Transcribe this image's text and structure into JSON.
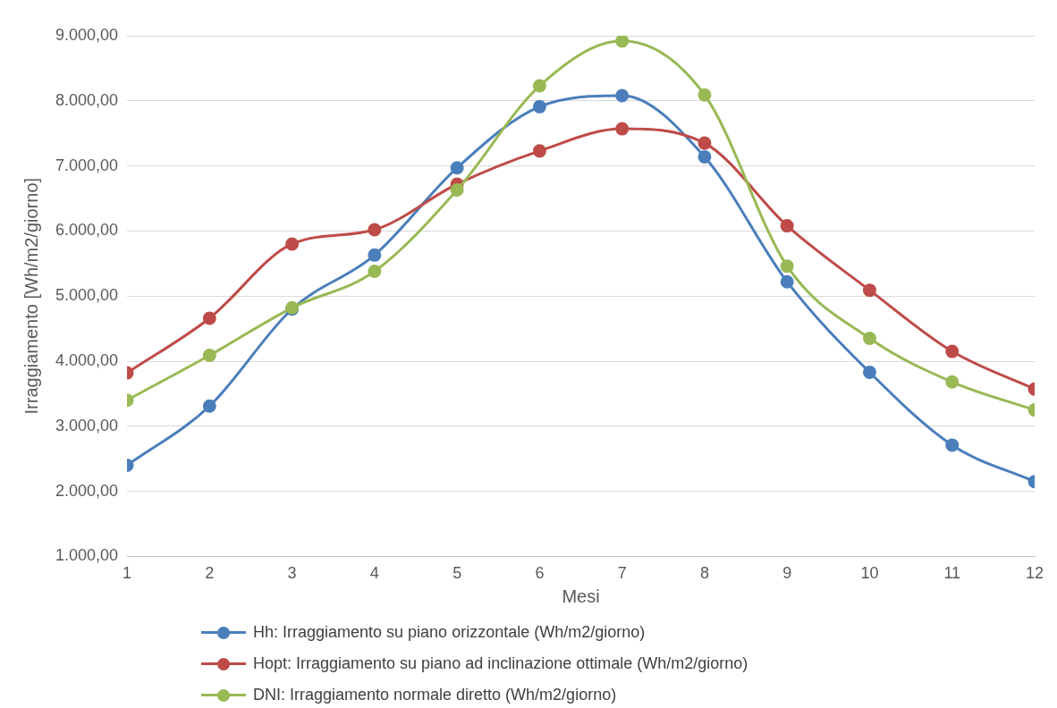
{
  "chart_data": {
    "type": "line",
    "xlabel": "Mesi",
    "ylabel": "Irraggiamento [Wh/m2/giorno]",
    "x": [
      1,
      2,
      3,
      4,
      5,
      6,
      7,
      8,
      9,
      10,
      11,
      12
    ],
    "xlim": [
      1,
      12
    ],
    "xticks": [
      1,
      2,
      3,
      4,
      5,
      6,
      7,
      8,
      9,
      10,
      11,
      12
    ],
    "ylim": [
      1000,
      9000
    ],
    "yticks": [
      {
        "value": 1000,
        "label": "1.000,00"
      },
      {
        "value": 2000,
        "label": "2.000,00"
      },
      {
        "value": 3000,
        "label": "3.000,00"
      },
      {
        "value": 4000,
        "label": "4.000,00"
      },
      {
        "value": 5000,
        "label": "5.000,00"
      },
      {
        "value": 6000,
        "label": "6.000,00"
      },
      {
        "value": 7000,
        "label": "7.000,00"
      },
      {
        "value": 8000,
        "label": "8.000,00"
      },
      {
        "value": 9000,
        "label": "9.000,00"
      }
    ],
    "grid": "y",
    "legend": "bottom",
    "marker": "circle",
    "line_style": "solid",
    "series": [
      {
        "name": "Hh: Irraggiamento su piano orizzontale (Wh/m2/giorno)",
        "color": "#4a7ebb",
        "values": [
          2400,
          3310,
          4800,
          5630,
          6970,
          7910,
          8080,
          7140,
          5220,
          3830,
          2710,
          2150
        ]
      },
      {
        "name": "Hopt: Irraggiamento su piano ad inclinazione ottimale (Wh/m2/giorno)",
        "color": "#be4b48",
        "values": [
          3820,
          4660,
          5800,
          6020,
          6720,
          7230,
          7570,
          7350,
          6080,
          5090,
          4150,
          3570
        ]
      },
      {
        "name": "DNI: Irraggiamento normale diretto (Wh/m2/giorno)",
        "color": "#98b954",
        "values": [
          3400,
          4090,
          4820,
          5380,
          6630,
          8230,
          8920,
          8090,
          5460,
          4350,
          3680,
          3250
        ]
      }
    ]
  }
}
